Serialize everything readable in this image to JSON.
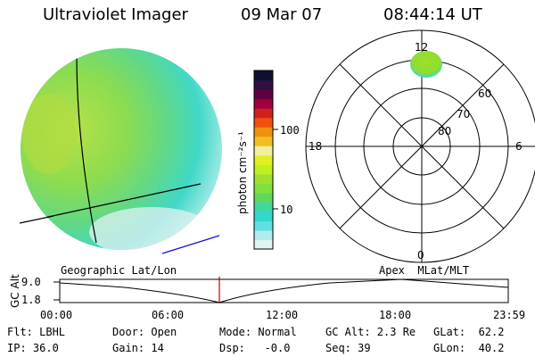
{
  "header": {
    "instrument": "Ultraviolet Imager",
    "date": "09 Mar 07",
    "time": "08:44:14 UT"
  },
  "colorbar": {
    "unit_label": "photon cm⁻²s⁻¹",
    "ticks": [
      "100",
      "10"
    ],
    "colors": [
      "#101030",
      "#301040",
      "#600040",
      "#a00040",
      "#d02020",
      "#f05010",
      "#f09010",
      "#f0c020",
      "#f0f0a0",
      "#e0f020",
      "#c0f020",
      "#a0e030",
      "#80e040",
      "#60d860",
      "#40d8a0",
      "#30d8d0",
      "#60e0e0",
      "#b0ecec",
      "#e0f4f4"
    ]
  },
  "polar": {
    "mlt_labels": {
      "top": "12",
      "left": "18",
      "right": "6",
      "bottom": "0"
    },
    "lat_labels": [
      "60",
      "70",
      "80"
    ]
  },
  "timeline": {
    "left_label": "Geographic Lat/Lon",
    "right_label": "Apex  MLat/MLT",
    "y_axis_label": "GC Alt",
    "y_ticks": [
      "9.0",
      "1.8"
    ],
    "x_ticks": [
      "00:00",
      "06:00",
      "12:00",
      "18:00",
      "23:59"
    ]
  },
  "footer": {
    "row1": {
      "filter": "Flt: LBHL",
      "door": "Door: Open",
      "mode": "Mode: Normal",
      "gc_alt": "GC Alt: 2.3 Re",
      "glat": "GLat:  62.2"
    },
    "row2": {
      "ip": "IP: 36.0",
      "gain": "Gain: 14",
      "dsp": "Dsp:   -0.0",
      "seq": "Seq: 39",
      "glon": "GLon:  40.2"
    }
  }
}
